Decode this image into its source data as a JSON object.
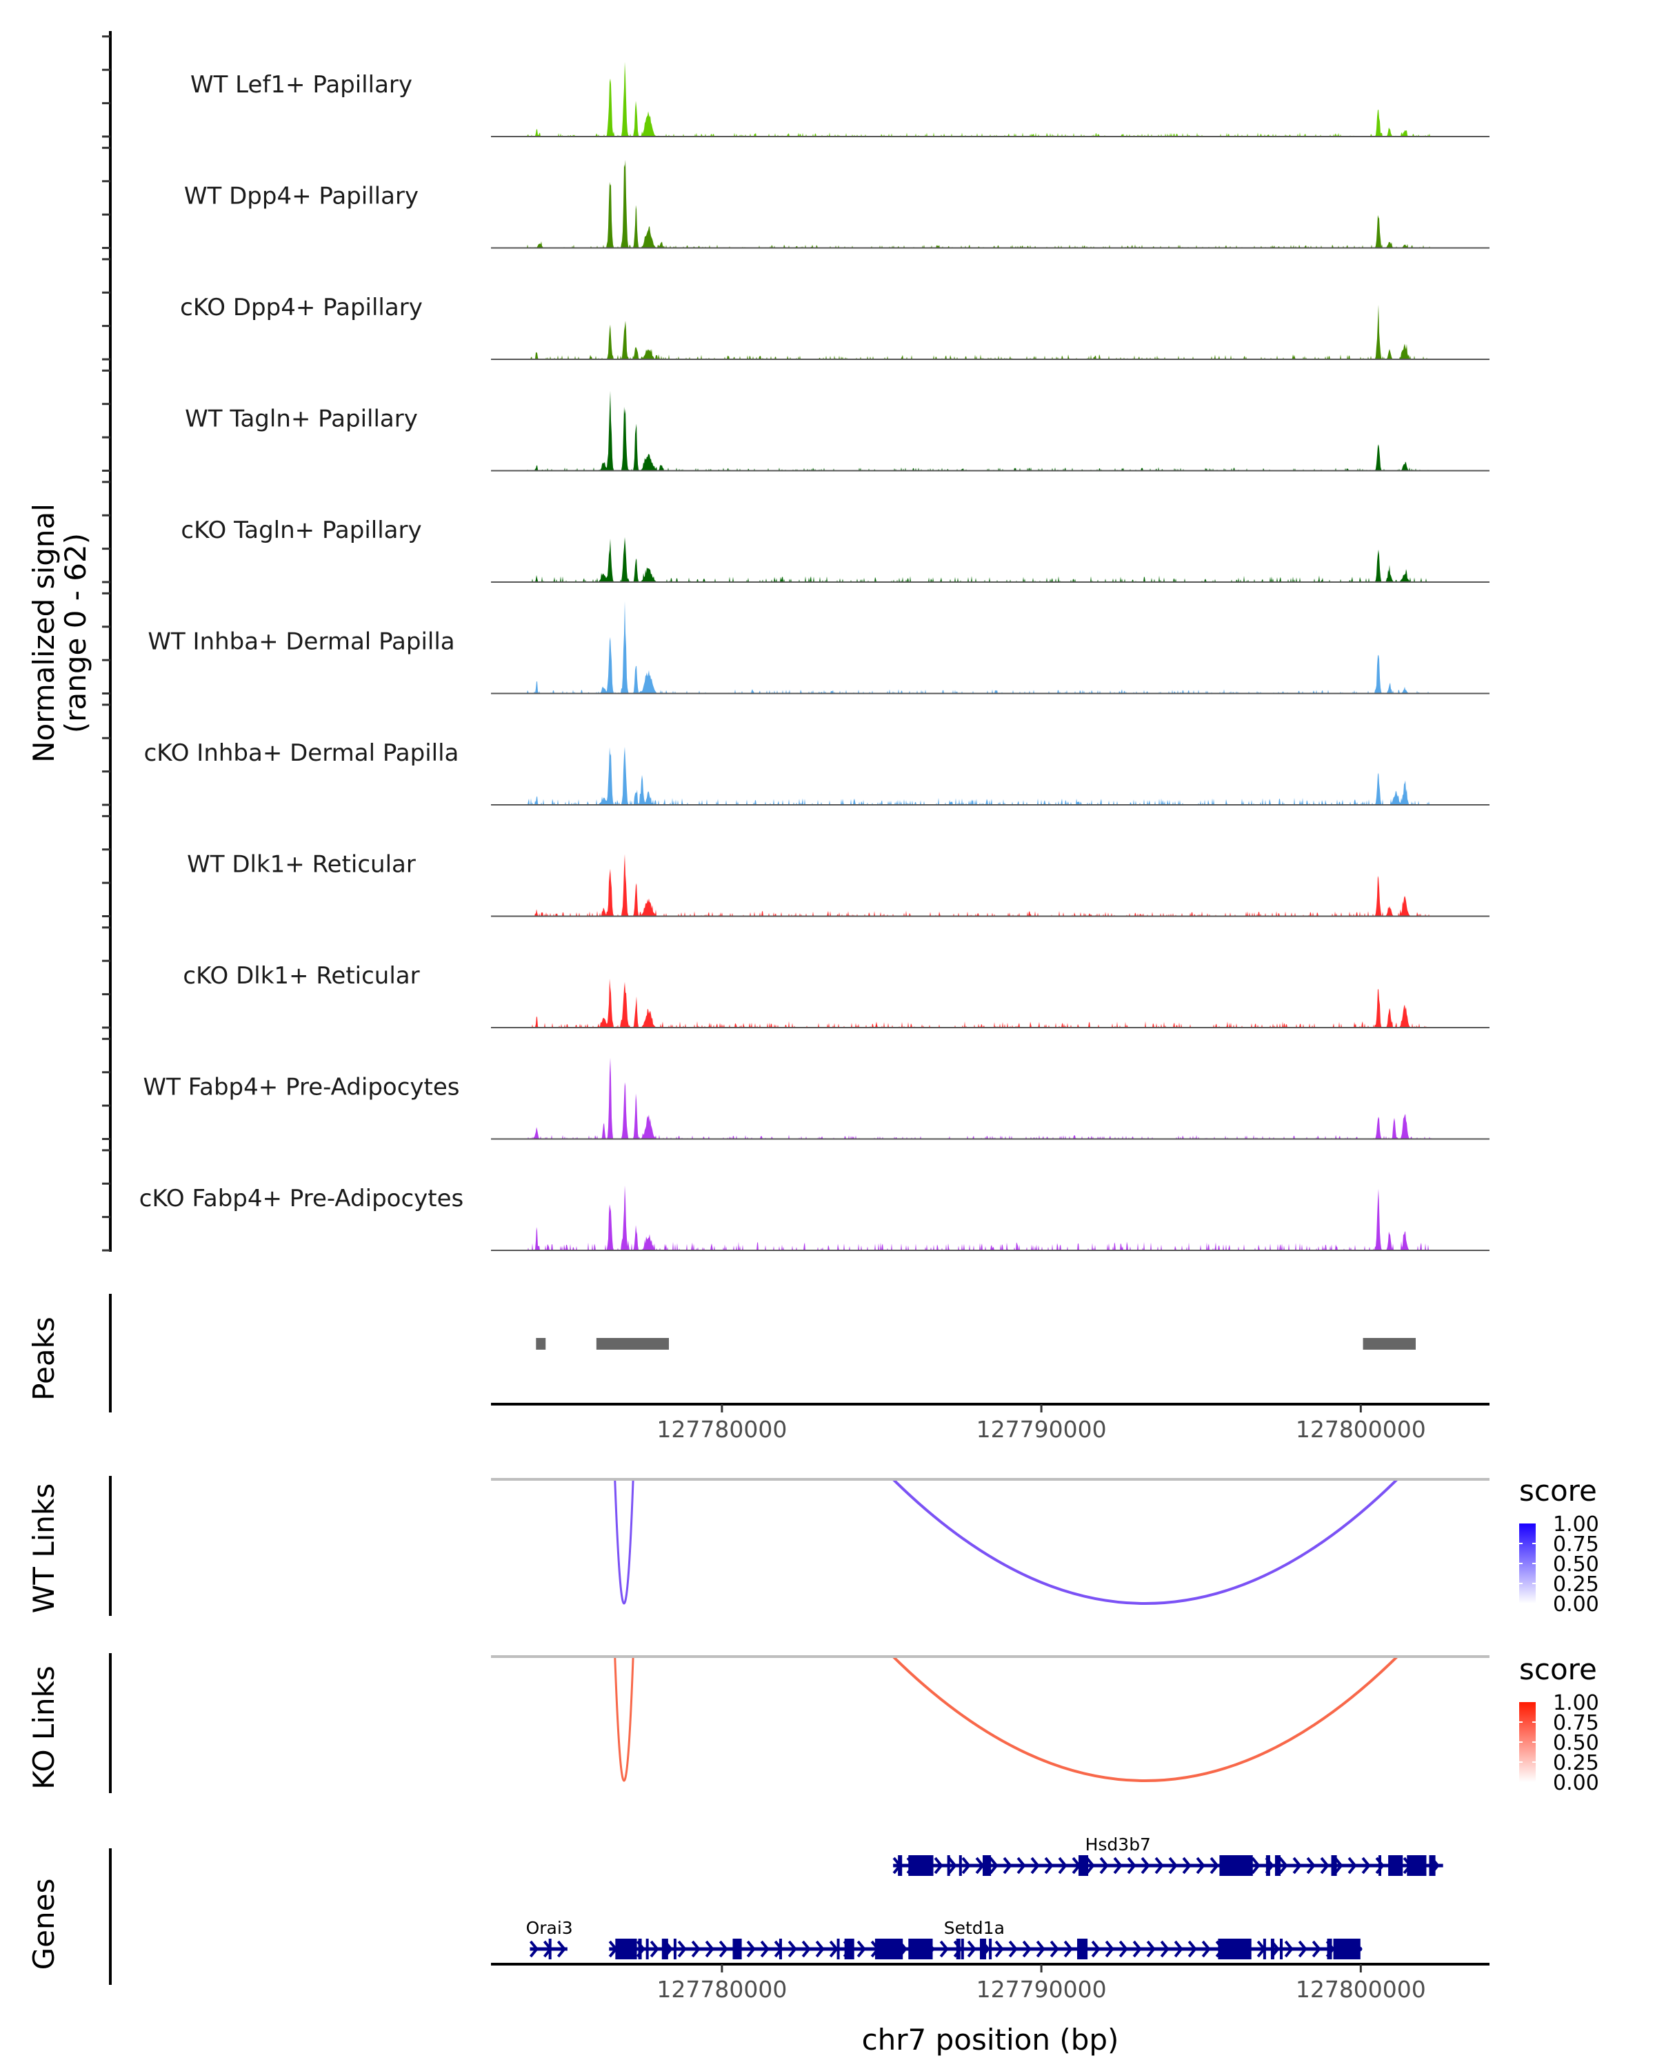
{
  "chart_data": {
    "type": "area",
    "title": "",
    "region": {
      "chrom": "chr7",
      "start": 127772770,
      "end": 127804030
    },
    "xlabel": "chr7 position (bp)",
    "x_ticks": [
      127780000,
      127790000,
      127800000
    ],
    "x_tick_labels": [
      "127780000",
      "127790000",
      "127800000"
    ],
    "coverage": {
      "ylabel_line1": "Normalized signal",
      "ylabel_line2": "(range 0 - 62)",
      "ylim": [
        0,
        62
      ],
      "tracks": [
        {
          "name": "WT Lef1+ Papillary",
          "color": "#66CC00",
          "peaks": [
            [
              127774200,
              6,
              80
            ],
            [
              127776500,
              39,
              150
            ],
            [
              127776960,
              44,
              150
            ],
            [
              127777310,
              24,
              120
            ],
            [
              127777700,
              15,
              350
            ],
            [
              127800550,
              19,
              140
            ],
            [
              127800900,
              5,
              150
            ],
            [
              127801380,
              3,
              200
            ]
          ],
          "noise": 0.6
        },
        {
          "name": "WT Dpp4+ Papillary",
          "color": "#458B00",
          "peaks": [
            [
              127774300,
              3,
              200
            ],
            [
              127776500,
              46,
              150
            ],
            [
              127776960,
              62,
              150
            ],
            [
              127777310,
              28,
              120
            ],
            [
              127777700,
              13,
              350
            ],
            [
              127778100,
              4,
              150
            ],
            [
              127800550,
              23,
              140
            ],
            [
              127800900,
              4,
              200
            ],
            [
              127801380,
              2,
              200
            ]
          ],
          "noise": 0.5
        },
        {
          "name": "cKO Dpp4+ Papillary",
          "color": "#458B00",
          "peaks": [
            [
              127774200,
              5,
              80
            ],
            [
              127776500,
              20,
              140
            ],
            [
              127776960,
              26,
              150
            ],
            [
              127777310,
              9,
              150
            ],
            [
              127777700,
              7,
              350
            ],
            [
              127800550,
              28,
              140
            ],
            [
              127800900,
              6,
              150
            ],
            [
              127801380,
              9,
              250
            ]
          ],
          "noise": 0.7
        },
        {
          "name": "WT Tagln+ Papillary",
          "color": "#006400",
          "peaks": [
            [
              127774200,
              3,
              80
            ],
            [
              127776300,
              6,
              200
            ],
            [
              127776500,
              45,
              150
            ],
            [
              127776960,
              43,
              150
            ],
            [
              127777310,
              30,
              120
            ],
            [
              127777700,
              10,
              400
            ],
            [
              127778100,
              4,
              150
            ],
            [
              127800550,
              21,
              140
            ],
            [
              127801380,
              5,
              200
            ]
          ],
          "noise": 0.5
        },
        {
          "name": "cKO Tagln+ Papillary",
          "color": "#006400",
          "peaks": [
            [
              127774200,
              4,
              80
            ],
            [
              127776300,
              5,
              300
            ],
            [
              127776500,
              25,
              150
            ],
            [
              127776960,
              30,
              150
            ],
            [
              127777310,
              15,
              120
            ],
            [
              127777700,
              8,
              400
            ],
            [
              127800550,
              20,
              140
            ],
            [
              127800900,
              7,
              200
            ],
            [
              127801380,
              5,
              300
            ]
          ],
          "noise": 0.9
        },
        {
          "name": "WT Inhba+ Dermal Papilla",
          "color": "#56A6E8",
          "peaks": [
            [
              127774200,
              8,
              80
            ],
            [
              127776300,
              4,
              200
            ],
            [
              127776500,
              37,
              150
            ],
            [
              127776960,
              49,
              150
            ],
            [
              127777310,
              22,
              120
            ],
            [
              127777700,
              14,
              400
            ],
            [
              127800550,
              26,
              140
            ],
            [
              127800900,
              5,
              150
            ],
            [
              127801380,
              3,
              200
            ]
          ],
          "noise": 0.6
        },
        {
          "name": "cKO Inhba+ Dermal Papilla",
          "color": "#56A6E8",
          "peaks": [
            [
              127774200,
              5,
              80
            ],
            [
              127776300,
              4,
              300
            ],
            [
              127776500,
              37,
              150
            ],
            [
              127776960,
              37,
              150
            ],
            [
              127777310,
              10,
              120
            ],
            [
              127777500,
              17,
              150
            ],
            [
              127777700,
              8,
              200
            ],
            [
              127800550,
              19,
              140
            ],
            [
              127801100,
              7,
              300
            ],
            [
              127801380,
              13,
              200
            ]
          ],
          "noise": 1.0
        },
        {
          "name": "WT Dlk1+ Reticular",
          "color": "#FF2A2A",
          "peaks": [
            [
              127774200,
              4,
              80
            ],
            [
              127776300,
              5,
              150
            ],
            [
              127776500,
              33,
              150
            ],
            [
              127776960,
              38,
              150
            ],
            [
              127777310,
              22,
              120
            ],
            [
              127777700,
              10,
              400
            ],
            [
              127800550,
              27,
              140
            ],
            [
              127800900,
              6,
              200
            ],
            [
              127801380,
              11,
              250
            ]
          ],
          "noise": 0.8
        },
        {
          "name": "cKO Dlk1+ Reticular",
          "color": "#FF2A2A",
          "peaks": [
            [
              127774200,
              5,
              80
            ],
            [
              127776300,
              6,
              250
            ],
            [
              127776500,
              27,
              150
            ],
            [
              127776960,
              27,
              200
            ],
            [
              127777310,
              18,
              120
            ],
            [
              127777700,
              11,
              350
            ],
            [
              127800550,
              26,
              140
            ],
            [
              127800900,
              13,
              150
            ],
            [
              127801380,
              14,
              250
            ]
          ],
          "noise": 0.9
        },
        {
          "name": "WT Fabp4+ Pre-Adipocytes",
          "color": "#B23AEE",
          "peaks": [
            [
              127774200,
              8,
              100
            ],
            [
              127776300,
              12,
              100
            ],
            [
              127776500,
              53,
              120
            ],
            [
              127776960,
              35,
              150
            ],
            [
              127777310,
              27,
              120
            ],
            [
              127777700,
              14,
              350
            ],
            [
              127800550,
              16,
              140
            ],
            [
              127801050,
              13,
              120
            ],
            [
              127801380,
              19,
              200
            ]
          ],
          "noise": 0.6
        },
        {
          "name": "cKO Fabp4+ Pre-Adipocytes",
          "color": "#B23AEE",
          "peaks": [
            [
              127774200,
              16,
              80
            ],
            [
              127776500,
              32,
              150
            ],
            [
              127776960,
              33,
              150
            ],
            [
              127777310,
              17,
              120
            ],
            [
              127777700,
              8,
              350
            ],
            [
              127800550,
              35,
              140
            ],
            [
              127800900,
              11,
              150
            ],
            [
              127801380,
              11,
              200
            ]
          ],
          "noise": 1.3
        }
      ]
    },
    "peaks": {
      "label": "Peaks",
      "color": "#666666",
      "ranges": [
        [
          127774180,
          127774480
        ],
        [
          127776070,
          127778340
        ],
        [
          127800070,
          127801720
        ]
      ]
    },
    "links": [
      {
        "label": "WT Links",
        "legend_title": "score",
        "color_high": "#1A00FF",
        "color_low": "#FFFFFF",
        "line_color": "#7B52F5",
        "legend_ticks": [
          "1.00",
          "0.75",
          "0.50",
          "0.25",
          "0.00"
        ],
        "arcs": [
          {
            "start": 127776660,
            "end": 127777210,
            "score": 0.65
          },
          {
            "start": 127785640,
            "end": 127800860,
            "score": 0.65
          }
        ]
      },
      {
        "label": "KO Links",
        "legend_title": "score",
        "color_high": "#FF1A00",
        "color_low": "#FFFFFF",
        "line_color": "#F8684A",
        "legend_ticks": [
          "1.00",
          "0.75",
          "0.50",
          "0.25",
          "0.00"
        ],
        "arcs": [
          {
            "start": 127776660,
            "end": 127777210,
            "score": 0.7
          },
          {
            "start": 127785640,
            "end": 127800860,
            "score": 0.7
          }
        ]
      }
    ],
    "genes": {
      "label": "Genes",
      "color": "#00008B",
      "models": [
        {
          "name": "Hsd3b7",
          "row": 0,
          "strand": "+",
          "start": 127785359,
          "end": 127802576,
          "exons": [
            [
              127785511,
              127785641
            ],
            [
              127785837,
              127786620
            ],
            [
              127787054,
              127787141
            ],
            [
              127787424,
              127787511
            ],
            [
              127788163,
              127788424
            ],
            [
              127791163,
              127791467
            ],
            [
              127795576,
              127796620
            ],
            [
              127797033,
              127797163
            ],
            [
              127797315,
              127797489
            ],
            [
              127799076,
              127799250
            ],
            [
              127800554,
              127800641
            ],
            [
              127800859,
              127801315
            ],
            [
              127801446,
              127802054
            ],
            [
              127802141,
              127802337
            ]
          ]
        },
        {
          "name": "Orai3",
          "row": 1,
          "strand": "+",
          "start": 127773989,
          "end": 127775163,
          "exons": [
            [
              127774576,
              127774663
            ]
          ]
        },
        {
          "name": "Setd1a",
          "row": 1,
          "strand": "+",
          "start": 127776467,
          "end": 127800033,
          "exons": [
            [
              127776663,
              127777337
            ],
            [
              127777380,
              127777489
            ],
            [
              127777620,
              127777685
            ],
            [
              127778120,
              127778315
            ],
            [
              127778489,
              127778554
            ],
            [
              127780337,
              127780620
            ],
            [
              127781793,
              127781859
            ],
            [
              127783598,
              127783663
            ],
            [
              127783837,
              127784141
            ],
            [
              127784793,
              127785663
            ],
            [
              127785837,
              127786598
            ],
            [
              127787337,
              127787467
            ],
            [
              127787489,
              127787554
            ],
            [
              127788076,
              127788272
            ],
            [
              127788359,
              127788424
            ],
            [
              127791120,
              127791446
            ],
            [
              127795533,
              127796576
            ],
            [
              127796946,
              127797033
            ],
            [
              127797185,
              127797293
            ],
            [
              127797467,
              127797554
            ],
            [
              127798946,
              127799098
            ],
            [
              127799141,
              127799989
            ]
          ]
        }
      ]
    }
  }
}
